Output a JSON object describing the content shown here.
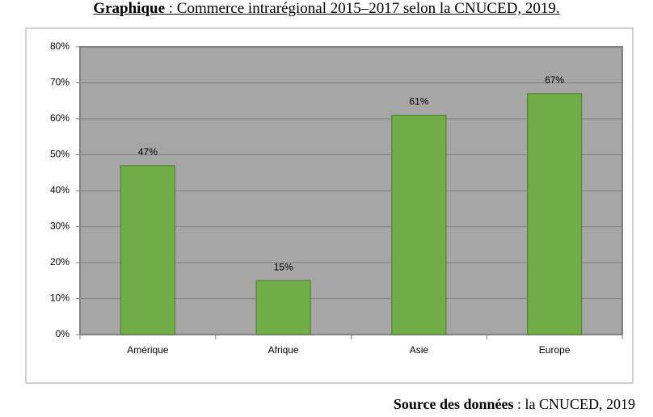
{
  "chart_data": {
    "type": "bar",
    "title_prefix": "Graphique",
    "title": " : Commerce intrarégional 2015–2017 selon la CNUCED, 2019.",
    "categories": [
      "Amérique",
      "Afrique",
      "Asie",
      "Europe"
    ],
    "values": [
      47,
      15,
      61,
      67
    ],
    "value_labels": [
      "47%",
      "15%",
      "61%",
      "67%"
    ],
    "color": "#70ad47",
    "ylim": [
      0,
      80
    ],
    "yticks": [
      {
        "value": 0,
        "label": "0%"
      },
      {
        "value": 10,
        "label": "10%"
      },
      {
        "value": 20,
        "label": "20%"
      },
      {
        "value": 30,
        "label": "30%"
      },
      {
        "value": 40,
        "label": "40%"
      },
      {
        "value": 50,
        "label": "50%"
      },
      {
        "value": 60,
        "label": "60%"
      },
      {
        "value": 70,
        "label": "70%"
      },
      {
        "value": 80,
        "label": "80%"
      }
    ],
    "grid": true,
    "source_label": "Source des données",
    "source": " : la CNUCED, 2019"
  }
}
